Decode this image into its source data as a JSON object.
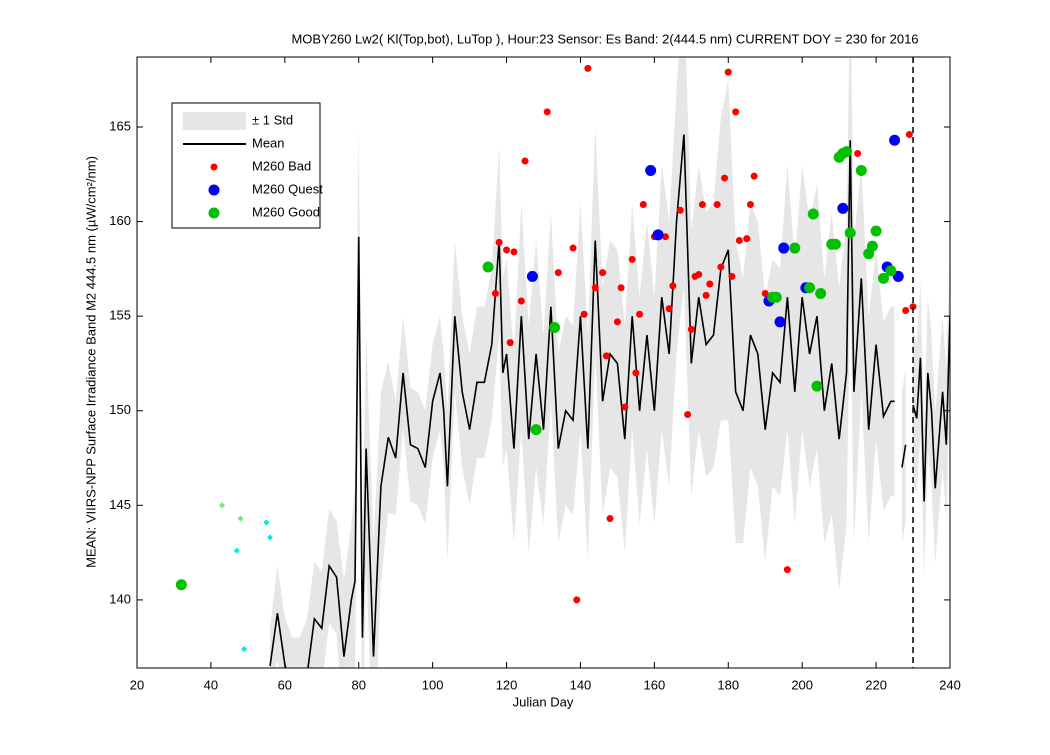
{
  "chart_data": {
    "type": "line",
    "title": "MOBY260   Lw2( Kl(Top,bot), LuTop ),   Hour:23 Sensor: Es Band: 2(444.5 nm)   CURRENT DOY = 230 for 2016",
    "x_label": "Julian Day",
    "y_label": "MEAN: VIIRS-NPP Surface Irradiance Band M2 444.5 nm (µW/cm²/nm)",
    "xlim": [
      20,
      240
    ],
    "ylim": [
      136.4,
      168.7
    ],
    "xticks": [
      20,
      40,
      60,
      80,
      100,
      120,
      140,
      160,
      180,
      200,
      220,
      240
    ],
    "yticks": [
      140,
      145,
      150,
      155,
      160,
      165
    ],
    "vline": 230,
    "legend": "upper left",
    "series": [
      {
        "name": "± 1 Std",
        "kind": "band",
        "color": "#e6e6e6",
        "x": [
          56,
          58,
          60,
          62,
          64,
          66,
          68,
          70,
          72,
          74,
          76,
          78,
          79,
          80,
          81,
          82,
          84,
          86,
          88,
          90,
          92,
          94,
          96,
          98,
          100,
          102,
          103,
          104,
          106,
          108,
          110,
          112,
          114,
          116,
          118,
          119,
          120,
          122,
          124,
          126,
          128,
          130,
          132,
          134,
          136,
          138,
          140,
          142,
          144,
          146,
          148,
          150,
          152,
          154,
          156,
          158,
          160,
          162,
          164,
          166,
          168,
          170,
          172,
          174,
          176,
          178,
          180,
          182,
          184,
          186,
          188,
          190,
          192,
          194,
          196,
          198,
          200,
          202,
          204,
          206,
          208,
          210,
          212,
          213,
          214,
          216,
          218,
          220,
          222,
          224,
          225,
          226,
          227,
          228,
          229,
          230,
          231,
          232,
          233,
          234,
          235,
          236,
          238,
          239,
          240
        ],
        "values": [
          2,
          2.5,
          2.5,
          3,
          3,
          3,
          3,
          3,
          3,
          3,
          4,
          4,
          5,
          6,
          6,
          6,
          6,
          5,
          4,
          3,
          3,
          3,
          3,
          3,
          3,
          3,
          3,
          4,
          4,
          4,
          4,
          4,
          4,
          4,
          5,
          5,
          5,
          5,
          6,
          6,
          6,
          5,
          5,
          5,
          5,
          5,
          6,
          6,
          6,
          6,
          6,
          6,
          6,
          6,
          6,
          6,
          6,
          7,
          7,
          7,
          8,
          7,
          7,
          7,
          7,
          8,
          9,
          8,
          7,
          7,
          7,
          7,
          6,
          6,
          7,
          7,
          7,
          7,
          7,
          7,
          8,
          8,
          8,
          8,
          8,
          6,
          6,
          5,
          5,
          5,
          5,
          null,
          4,
          4,
          null,
          4,
          4,
          4,
          4,
          4,
          4,
          4,
          4,
          4,
          4
        ]
      },
      {
        "name": "Mean",
        "kind": "line",
        "color": "#000000",
        "x": [
          56,
          58,
          60,
          62,
          64,
          66,
          68,
          70,
          72,
          74,
          76,
          78,
          79,
          80,
          81,
          82,
          84,
          86,
          88,
          90,
          92,
          94,
          96,
          98,
          100,
          102,
          103,
          104,
          106,
          108,
          110,
          112,
          114,
          116,
          118,
          119,
          120,
          122,
          124,
          126,
          128,
          130,
          132,
          134,
          136,
          138,
          140,
          142,
          144,
          146,
          148,
          150,
          152,
          154,
          156,
          158,
          160,
          162,
          164,
          166,
          168,
          170,
          172,
          174,
          176,
          178,
          180,
          182,
          184,
          186,
          188,
          190,
          192,
          194,
          196,
          198,
          200,
          202,
          204,
          206,
          208,
          210,
          212,
          213,
          214,
          216,
          218,
          220,
          222,
          224,
          225,
          226,
          227,
          228,
          229,
          230,
          231,
          232,
          233,
          234,
          235,
          236,
          238,
          239,
          240
        ],
        "values": [
          136.5,
          139.3,
          136.6,
          135,
          135,
          136,
          139,
          138.5,
          141.8,
          141.2,
          137,
          140,
          141,
          159.2,
          138,
          148,
          137,
          146,
          148.6,
          147.5,
          152,
          148.2,
          148,
          147,
          150.5,
          152,
          150,
          146,
          155,
          151,
          149,
          151.5,
          151.5,
          153.5,
          159,
          152,
          153,
          148,
          155,
          148.5,
          153,
          149,
          155.5,
          148,
          150,
          149.5,
          155,
          148,
          159,
          150.5,
          153,
          152.5,
          148.5,
          155,
          150,
          154,
          150,
          156,
          153,
          160,
          164.6,
          152.5,
          156,
          153.5,
          154,
          157.5,
          158.5,
          151,
          150,
          154,
          153,
          149,
          152,
          151.5,
          156,
          151,
          156,
          153,
          155,
          150,
          152.5,
          148.5,
          152,
          164.3,
          151,
          157,
          149,
          153.5,
          149.7,
          150.5,
          150.5,
          null,
          147,
          148.2,
          null,
          150.3,
          149.6,
          152.8,
          145.2,
          152,
          150,
          145.9,
          151,
          148.2,
          155
        ]
      },
      {
        "name": "M260 Bad",
        "kind": "dot",
        "color": "#ff0000",
        "x": [
          125,
          131,
          142,
          180,
          182,
          229,
          215,
          118,
          120,
          122,
          117,
          121,
          124,
          134,
          138,
          141,
          144,
          146,
          147,
          148,
          139,
          150,
          151,
          152,
          154,
          155,
          156,
          157,
          160,
          163,
          164,
          165,
          167,
          169,
          170,
          171,
          172,
          173,
          174,
          175,
          177,
          178,
          179,
          181,
          183,
          185,
          186,
          187,
          190,
          196,
          228,
          230
        ],
        "values": [
          163.2,
          165.8,
          168.1,
          167.9,
          165.8,
          164.6,
          163.6,
          158.9,
          158.5,
          158.4,
          156.2,
          153.6,
          155.8,
          157.3,
          158.6,
          155.1,
          156.5,
          157.3,
          152.9,
          144.3,
          140,
          154.7,
          156.5,
          150.2,
          158,
          152,
          155.1,
          160.9,
          159.2,
          159.2,
          155.4,
          156.6,
          160.6,
          149.8,
          154.3,
          157.1,
          157.2,
          160.9,
          156.1,
          156.7,
          160.9,
          157.6,
          162.3,
          157.1,
          159,
          159.1,
          160.9,
          162.4,
          156.2,
          141.6,
          155.3,
          155.5
        ]
      },
      {
        "name": "M260 Quest",
        "kind": "big",
        "color": "#0000ff",
        "x": [
          127,
          159,
          161,
          191,
          194,
          195,
          201,
          211,
          223,
          225,
          226
        ],
        "values": [
          157.1,
          162.7,
          159.3,
          155.8,
          154.7,
          158.6,
          156.5,
          160.7,
          157.6,
          164.3,
          157.1
        ]
      },
      {
        "name": "M260 Good",
        "kind": "big",
        "color": "#00c000",
        "x": [
          32,
          115,
          128,
          133,
          192,
          193,
          198,
          202,
          203,
          204,
          205,
          208,
          209,
          210,
          211,
          212,
          213,
          216,
          218,
          219,
          220,
          222,
          224
        ],
        "values": [
          140.8,
          157.6,
          149,
          154.4,
          156,
          156,
          158.6,
          156.5,
          160.4,
          151.3,
          156.2,
          158.8,
          158.8,
          163.4,
          163.6,
          163.7,
          159.4,
          162.7,
          158.3,
          158.7,
          159.5,
          157,
          157.4
        ]
      },
      {
        "kind": "diamond",
        "color": "#66ee66",
        "x": [
          43,
          48
        ],
        "values": [
          145,
          144.3
        ]
      },
      {
        "kind": "diamond",
        "color": "#00e8e8",
        "x": [
          47,
          55,
          56,
          49
        ],
        "values": [
          142.6,
          144.1,
          143.3,
          137.4
        ]
      }
    ]
  }
}
